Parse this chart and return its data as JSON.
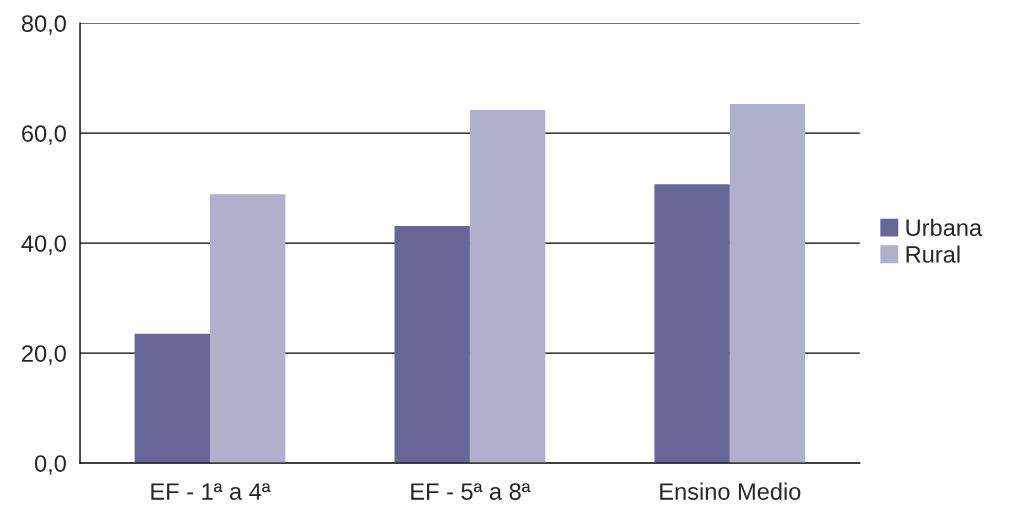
{
  "chart_data": {
    "type": "bar",
    "categories": [
      "EF - 1ª a 4ª",
      "EF - 5ª a 8ª",
      "Ensino Medio"
    ],
    "series": [
      {
        "name": "Urbana",
        "color": "#666699",
        "values": [
          23.5,
          43.1,
          50.7
        ]
      },
      {
        "name": "Rural",
        "color": "#b0b0cc",
        "values": [
          48.9,
          64.2,
          65.3
        ]
      }
    ],
    "ylim": [
      0,
      80
    ],
    "yticks": [
      {
        "value": 0,
        "label": "0,0"
      },
      {
        "value": 20,
        "label": "20,0"
      },
      {
        "value": 40,
        "label": "40,0"
      },
      {
        "value": 60,
        "label": "60,0"
      },
      {
        "value": 80,
        "label": "80,0"
      }
    ],
    "grid": "y",
    "legend": "right"
  }
}
